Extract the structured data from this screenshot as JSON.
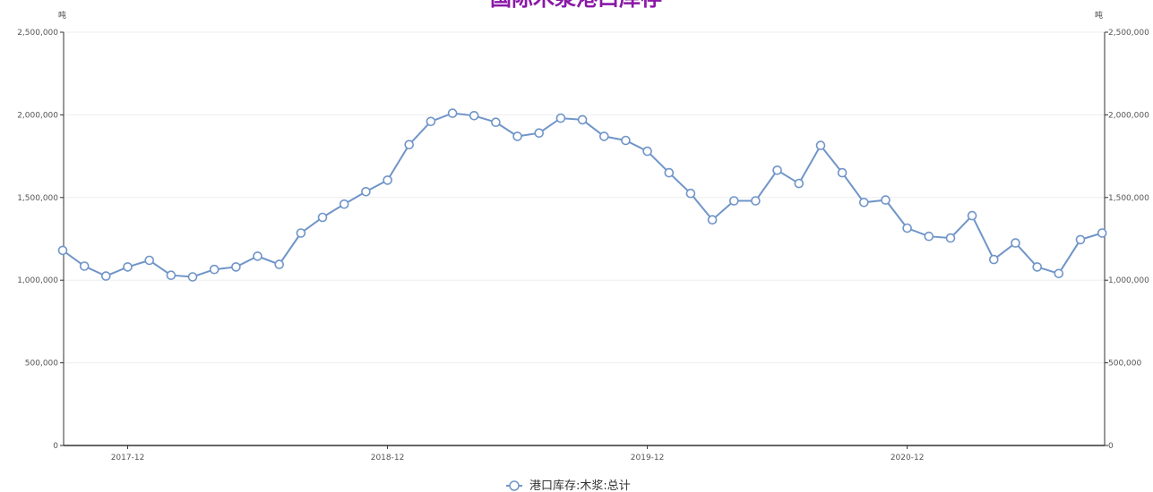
{
  "chart_data": {
    "type": "line",
    "title": "国际木浆港口库存",
    "y_unit_left": "吨",
    "y_unit_right": "吨",
    "ylim": [
      0,
      2500000
    ],
    "y_ticks": [
      0,
      500000,
      1000000,
      1500000,
      2000000,
      2500000
    ],
    "y_tick_labels": [
      "0",
      "500,000",
      "1,000,000",
      "1,500,000",
      "2,000,000",
      "2,500,000"
    ],
    "x_tick_labels": [
      "2017-12",
      "2018-12",
      "2019-12",
      "2020-12"
    ],
    "grid": true,
    "legend_position": "bottom-center",
    "colors": {
      "line": "#7095c8",
      "title": "#8a18a8",
      "axis": "#333333",
      "grid": "#eeeeee"
    },
    "x": [
      "2017-09",
      "2017-10",
      "2017-11",
      "2017-12",
      "2018-01",
      "2018-02",
      "2018-03",
      "2018-04",
      "2018-05",
      "2018-06",
      "2018-07",
      "2018-08",
      "2018-09",
      "2018-10",
      "2018-11",
      "2018-12",
      "2019-01",
      "2019-02",
      "2019-03",
      "2019-04",
      "2019-05",
      "2019-06",
      "2019-07",
      "2019-08",
      "2019-09",
      "2019-10",
      "2019-11",
      "2019-12",
      "2020-01",
      "2020-02",
      "2020-03",
      "2020-04",
      "2020-05",
      "2020-06",
      "2020-07",
      "2020-08",
      "2020-09",
      "2020-10",
      "2020-11",
      "2020-12",
      "2021-01",
      "2021-02",
      "2021-03",
      "2021-04",
      "2021-05",
      "2021-06",
      "2021-07",
      "2021-08",
      "2021-09"
    ],
    "series": [
      {
        "name": "港口库存:木浆:总计",
        "values": [
          1180000,
          1085000,
          1025000,
          1080000,
          1120000,
          1030000,
          1020000,
          1065000,
          1080000,
          1145000,
          1095000,
          1285000,
          1380000,
          1460000,
          1535000,
          1605000,
          1820000,
          1960000,
          2010000,
          1995000,
          1955000,
          1870000,
          1890000,
          1980000,
          1970000,
          1870000,
          1845000,
          1780000,
          1650000,
          1525000,
          1365000,
          1480000,
          1480000,
          1665000,
          1585000,
          1815000,
          1650000,
          1470000,
          1485000,
          1315000,
          1265000,
          1255000,
          1390000,
          1125000,
          1225000,
          1080000,
          1040000,
          1245000,
          1285000
        ]
      }
    ]
  }
}
